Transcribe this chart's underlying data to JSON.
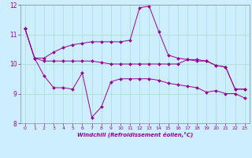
{
  "xlabel": "Windchill (Refroidissement éolien,°C)",
  "bg_color": "#cceeff",
  "line_color": "#990099",
  "xlim": [
    -0.5,
    23.5
  ],
  "ylim": [
    8,
    12
  ],
  "yticks": [
    8,
    9,
    10,
    11,
    12
  ],
  "xticks": [
    0,
    1,
    2,
    3,
    4,
    5,
    6,
    7,
    8,
    9,
    10,
    11,
    12,
    13,
    14,
    15,
    16,
    17,
    18,
    19,
    20,
    21,
    22,
    23
  ],
  "line1_x": [
    0,
    1,
    2,
    3,
    4,
    5,
    6,
    7,
    8,
    9,
    10,
    11,
    12,
    13,
    14,
    15,
    16,
    17,
    18,
    19,
    20,
    21,
    22,
    23
  ],
  "line1_y": [
    11.2,
    10.2,
    10.1,
    10.1,
    10.1,
    10.1,
    10.1,
    10.1,
    10.05,
    10.0,
    10.0,
    10.0,
    10.0,
    10.0,
    10.0,
    10.0,
    10.0,
    10.15,
    10.15,
    10.1,
    9.95,
    9.9,
    9.15,
    9.15
  ],
  "line2_x": [
    0,
    1,
    2,
    3,
    4,
    5,
    6,
    7,
    8,
    9,
    10,
    11,
    12,
    13,
    14,
    15,
    16,
    17,
    18,
    19,
    20,
    21,
    22,
    23
  ],
  "line2_y": [
    11.2,
    10.2,
    10.2,
    10.4,
    10.55,
    10.65,
    10.7,
    10.75,
    10.75,
    10.75,
    10.75,
    10.8,
    11.9,
    11.95,
    11.1,
    10.3,
    10.2,
    10.15,
    10.1,
    10.1,
    9.95,
    9.9,
    9.15,
    9.15
  ],
  "line3_x": [
    0,
    1,
    2,
    3,
    4,
    5,
    6,
    7,
    8,
    9,
    10,
    11,
    12,
    13,
    14,
    15,
    16,
    17,
    18,
    19,
    20,
    21,
    22,
    23
  ],
  "line3_y": [
    11.2,
    10.2,
    9.6,
    9.2,
    9.2,
    9.15,
    9.7,
    8.2,
    8.55,
    9.4,
    9.5,
    9.5,
    9.5,
    9.5,
    9.45,
    9.35,
    9.3,
    9.25,
    9.2,
    9.05,
    9.1,
    9.0,
    9.0,
    8.85
  ],
  "grid_color": "#aaddcc",
  "spine_color": "#888888"
}
